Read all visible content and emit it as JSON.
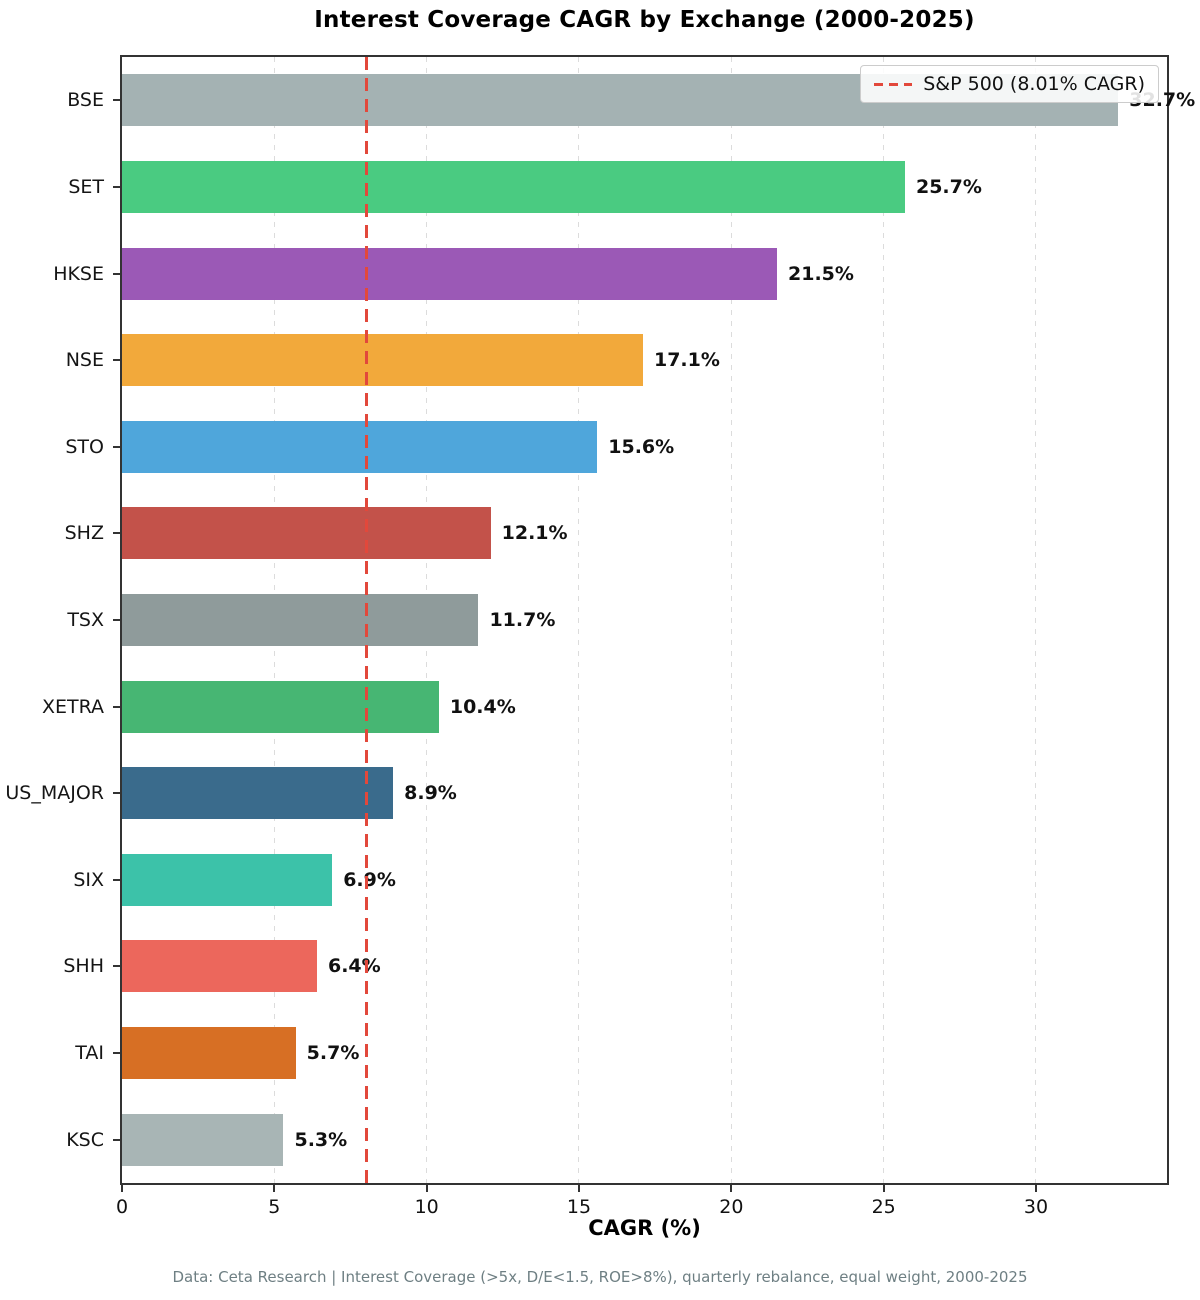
{
  "footer": {
    "text": "Data: Ceta Research | Interest Coverage (>5x, D/E<1.5, ROE>8%), quarterly rebalance, equal weight, 2000-2025"
  },
  "chart_data": {
    "type": "bar",
    "orientation": "horizontal",
    "title": "Interest Coverage CAGR by Exchange (2000-2025)",
    "xlabel": "CAGR (%)",
    "ylabel": "",
    "categories": [
      "BSE",
      "SET",
      "HKSE",
      "NSE",
      "STO",
      "SHZ",
      "TSX",
      "XETRA",
      "US_MAJOR",
      "SIX",
      "SHH",
      "TAI",
      "KSC"
    ],
    "values": [
      32.7,
      25.7,
      21.5,
      17.1,
      15.6,
      12.1,
      11.7,
      10.4,
      8.9,
      6.9,
      6.4,
      5.7,
      5.3
    ],
    "value_labels": [
      "32.7%",
      "25.7%",
      "21.5%",
      "17.1%",
      "15.6%",
      "12.1%",
      "11.7%",
      "10.4%",
      "8.9%",
      "6.9%",
      "6.4%",
      "5.7%",
      "5.3%"
    ],
    "bar_colors": [
      "#a4b2b3",
      "#4acb81",
      "#9b59b6",
      "#f2a93b",
      "#4fa6db",
      "#c3524a",
      "#8f9b9b",
      "#47b673",
      "#3a6b8c",
      "#3cc2a9",
      "#ec675c",
      "#d76f24",
      "#a8b5b5"
    ],
    "xlim": [
      0,
      34.3
    ],
    "xticks": [
      0,
      5,
      10,
      15,
      20,
      25,
      30
    ],
    "xtick_labels": [
      "0",
      "5",
      "10",
      "15",
      "20",
      "25",
      "30"
    ],
    "grid": true,
    "grid_color": "#dcdcdc",
    "spine_color": "#333333",
    "reference_line": {
      "value": 8.01,
      "color": "#e2483b",
      "style": "dashed",
      "legend_label": "S&P 500 (8.01% CAGR)"
    },
    "legend_position": "upper right"
  }
}
